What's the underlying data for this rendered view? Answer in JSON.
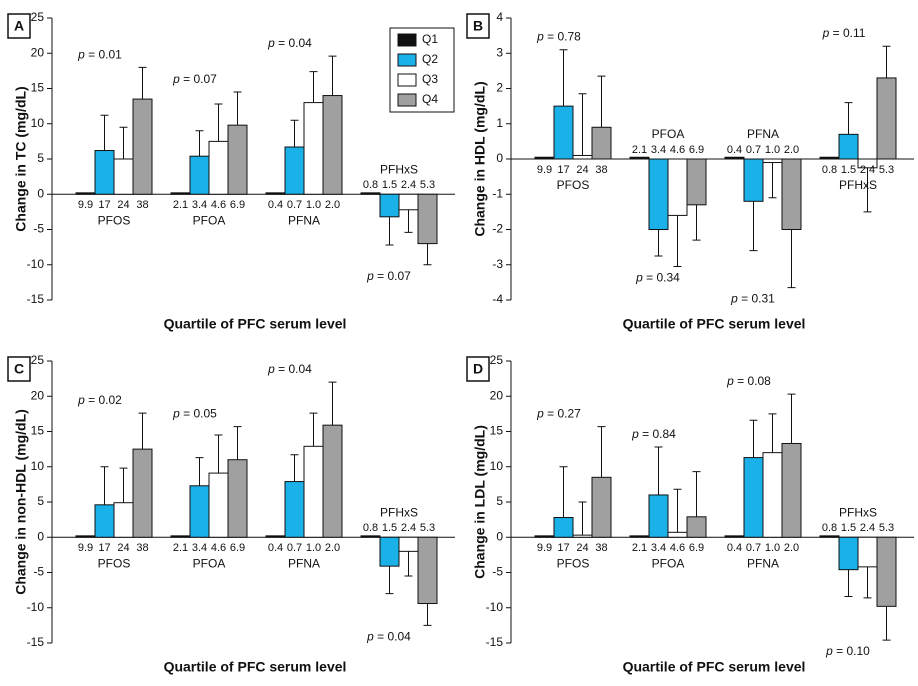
{
  "chart_data": [
    {
      "type": "bar",
      "panel": "A",
      "ylabel": "Change in TC (mg/dL)",
      "xlabel": "Quartile of PFC serum level",
      "ylim": [
        -15,
        25
      ],
      "yticks": [
        -15,
        -10,
        -5,
        0,
        5,
        10,
        15,
        20,
        25
      ],
      "legend": "upper right",
      "groups": [
        "PFOS",
        "PFOA",
        "PFNA",
        "PFHxS"
      ],
      "quartile_labels": [
        [
          "9.9",
          "17",
          "24",
          "38"
        ],
        [
          "2.1",
          "3.4",
          "4.6",
          "6.9"
        ],
        [
          "0.4",
          "0.7",
          "1.0",
          "2.0"
        ],
        [
          "0.8",
          "1.5",
          "2.4",
          "5.3"
        ]
      ],
      "p_values": [
        "p = 0.01",
        "p = 0.07",
        "p = 0.04",
        "p = 0.07"
      ],
      "series": [
        {
          "name": "Q1",
          "color": "#111111",
          "values": [
            0.2,
            0.2,
            0.2,
            0.2
          ],
          "errors": [
            null,
            null,
            null,
            null
          ]
        },
        {
          "name": "Q2",
          "color": "#1ab0e8",
          "values": [
            6.2,
            5.4,
            6.7,
            -3.2
          ],
          "errors": [
            5.0,
            3.6,
            3.8,
            4.0
          ]
        },
        {
          "name": "Q3",
          "color": "#ffffff",
          "values": [
            5.0,
            7.5,
            13.0,
            -2.2
          ],
          "errors": [
            4.5,
            5.3,
            4.4,
            3.2
          ]
        },
        {
          "name": "Q4",
          "color": "#a0a0a0",
          "values": [
            13.5,
            9.8,
            14.0,
            -7.0
          ],
          "errors": [
            4.5,
            4.7,
            5.6,
            3.0
          ]
        }
      ]
    },
    {
      "type": "bar",
      "panel": "B",
      "ylabel": "Change in HDL (mg/dL)",
      "xlabel": "Quartile of PFC serum level",
      "ylim": [
        -4,
        4
      ],
      "yticks": [
        -4,
        -3,
        -2,
        -1,
        0,
        1,
        2,
        3,
        4
      ],
      "groups": [
        "PFOS",
        "PFOA",
        "PFNA",
        "PFHxS"
      ],
      "quartile_labels": [
        [
          "9.9",
          "17",
          "24",
          "38"
        ],
        [
          "2.1",
          "3.4",
          "4.6",
          "6.9"
        ],
        [
          "0.4",
          "0.7",
          "1.0",
          "2.0"
        ],
        [
          "0.8",
          "1.5",
          "2.4",
          "5.3"
        ]
      ],
      "p_values": [
        "p = 0.78",
        "p = 0.34",
        "p = 0.31",
        "p = 0.11"
      ],
      "series": [
        {
          "name": "Q1",
          "color": "#111111",
          "values": [
            0.05,
            0.05,
            0.05,
            0.05
          ],
          "errors": [
            null,
            null,
            null,
            null
          ]
        },
        {
          "name": "Q2",
          "color": "#1ab0e8",
          "values": [
            1.5,
            -2.0,
            -1.2,
            0.7
          ],
          "errors": [
            1.6,
            0.75,
            1.4,
            0.9
          ]
        },
        {
          "name": "Q3",
          "color": "#ffffff",
          "values": [
            0.1,
            -1.6,
            -0.1,
            -0.25
          ],
          "errors": [
            1.75,
            1.45,
            1.0,
            1.25
          ]
        },
        {
          "name": "Q4",
          "color": "#a0a0a0",
          "values": [
            0.9,
            -1.3,
            -2.0,
            2.3
          ],
          "errors": [
            1.45,
            1.0,
            1.65,
            0.9
          ]
        }
      ]
    },
    {
      "type": "bar",
      "panel": "C",
      "ylabel": "Change in non-HDL (mg/dL)",
      "xlabel": "Quartile of PFC serum level",
      "ylim": [
        -15,
        25
      ],
      "yticks": [
        -15,
        -10,
        -5,
        0,
        5,
        10,
        15,
        20,
        25
      ],
      "groups": [
        "PFOS",
        "PFOA",
        "PFNA",
        "PFHxS"
      ],
      "quartile_labels": [
        [
          "9.9",
          "17",
          "24",
          "38"
        ],
        [
          "2.1",
          "3.4",
          "4.6",
          "6.9"
        ],
        [
          "0.4",
          "0.7",
          "1.0",
          "2.0"
        ],
        [
          "0.8",
          "1.5",
          "2.4",
          "5.3"
        ]
      ],
      "p_values": [
        "p = 0.02",
        "p = 0.05",
        "p = 0.04",
        "p = 0.04"
      ],
      "series": [
        {
          "name": "Q1",
          "color": "#111111",
          "values": [
            0.2,
            0.2,
            0.2,
            0.2
          ],
          "errors": [
            null,
            null,
            null,
            null
          ]
        },
        {
          "name": "Q2",
          "color": "#1ab0e8",
          "values": [
            4.6,
            7.3,
            7.9,
            -4.1
          ],
          "errors": [
            5.4,
            4.0,
            3.8,
            3.9
          ]
        },
        {
          "name": "Q3",
          "color": "#ffffff",
          "values": [
            4.9,
            9.1,
            12.9,
            -2.0
          ],
          "errors": [
            4.9,
            5.4,
            4.7,
            3.5
          ]
        },
        {
          "name": "Q4",
          "color": "#a0a0a0",
          "values": [
            12.5,
            11.0,
            15.9,
            -9.4
          ],
          "errors": [
            5.1,
            4.7,
            6.1,
            3.1
          ]
        }
      ]
    },
    {
      "type": "bar",
      "panel": "D",
      "ylabel": "Change in LDL (mg/dL)",
      "xlabel": "Quartile of PFC serum level",
      "ylim": [
        -15,
        25
      ],
      "yticks": [
        -15,
        -10,
        -5,
        0,
        5,
        10,
        15,
        20,
        25
      ],
      "groups": [
        "PFOS",
        "PFOA",
        "PFNA",
        "PFHxS"
      ],
      "quartile_labels": [
        [
          "9.9",
          "17",
          "24",
          "38"
        ],
        [
          "2.1",
          "3.4",
          "4.6",
          "6.9"
        ],
        [
          "0.4",
          "0.7",
          "1.0",
          "2.0"
        ],
        [
          "0.8",
          "1.5",
          "2.4",
          "5.3"
        ]
      ],
      "p_values": [
        "p = 0.27",
        "p = 0.84",
        "p = 0.08",
        "p = 0.10"
      ],
      "series": [
        {
          "name": "Q1",
          "color": "#111111",
          "values": [
            0.2,
            0.2,
            0.2,
            0.2
          ],
          "errors": [
            null,
            null,
            null,
            null
          ]
        },
        {
          "name": "Q2",
          "color": "#1ab0e8",
          "values": [
            2.8,
            6.0,
            11.3,
            -4.6
          ],
          "errors": [
            7.2,
            6.8,
            5.3,
            3.8
          ]
        },
        {
          "name": "Q3",
          "color": "#ffffff",
          "values": [
            0.3,
            0.7,
            12.0,
            -4.2
          ],
          "errors": [
            4.7,
            6.1,
            5.5,
            4.4
          ]
        },
        {
          "name": "Q4",
          "color": "#a0a0a0",
          "values": [
            8.5,
            2.9,
            13.3,
            -9.8
          ],
          "errors": [
            7.2,
            6.4,
            7.0,
            4.8
          ]
        }
      ]
    }
  ]
}
